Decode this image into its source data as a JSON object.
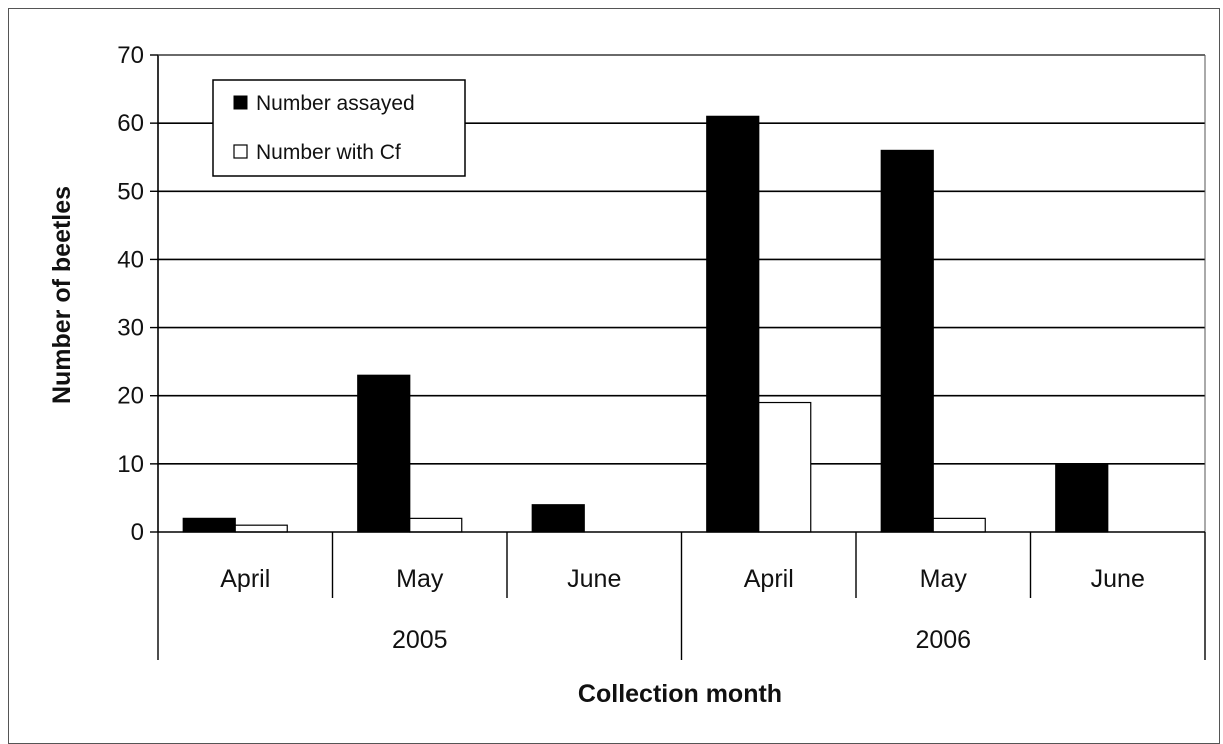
{
  "chart_data": {
    "type": "bar",
    "title": "",
    "xlabel": "Collection month",
    "ylabel": "Number of beetles",
    "ylim": [
      0,
      70
    ],
    "yticks": [
      0,
      10,
      20,
      30,
      40,
      50,
      60,
      70
    ],
    "grid": true,
    "legend_position": "top-left",
    "categories": [
      "April",
      "May",
      "June",
      "April",
      "May",
      "June"
    ],
    "groups": [
      {
        "label": "2005",
        "categories": [
          "April",
          "May",
          "June"
        ]
      },
      {
        "label": "2006",
        "categories": [
          "April",
          "May",
          "June"
        ]
      }
    ],
    "series": [
      {
        "name": "Number assayed",
        "color": "#000000",
        "values": [
          2,
          23,
          4,
          61,
          56,
          10
        ]
      },
      {
        "name": "Number with Cf",
        "color": "#ffffff",
        "values": [
          1,
          2,
          0,
          19,
          2,
          0
        ]
      }
    ]
  }
}
